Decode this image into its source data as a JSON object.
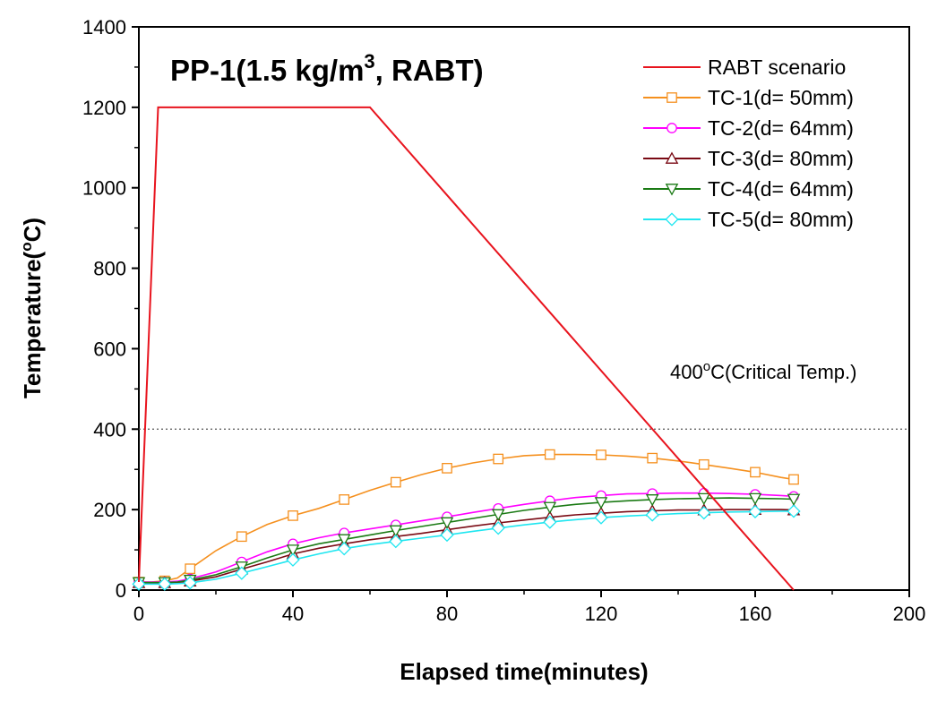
{
  "chart_data": {
    "type": "line",
    "title": {
      "prefix": "PP-1(1.5 kg/m",
      "sup": "3",
      "suffix": ", RABT)"
    },
    "xlabel": "Elapsed time(minutes)",
    "ylabel": {
      "prefix": "Temperature(",
      "sup": "o",
      "suffix": "C)"
    },
    "xlim": [
      0,
      200
    ],
    "ylim": [
      0,
      1400
    ],
    "xticks": [
      "0",
      "40",
      "80",
      "120",
      "160",
      "200"
    ],
    "yticks": [
      "0",
      "200",
      "400",
      "600",
      "800",
      "1000",
      "1200",
      "1400"
    ],
    "grid": false,
    "legend_position": "top-right",
    "reference_line": {
      "y": 400,
      "label": {
        "prefix": "400",
        "sup": "o",
        "suffix": "C(Critical Temp.)"
      }
    },
    "series": [
      {
        "name": "RABT scenario",
        "color": "#e8141e",
        "marker": "none",
        "x": [
          0,
          5,
          60,
          170
        ],
        "y": [
          20,
          1200,
          1200,
          0
        ]
      },
      {
        "name": "TC-1(d= 50mm)",
        "color": "#f5901e",
        "marker": "square",
        "x": [
          0,
          3.3,
          6.7,
          10,
          13.3,
          20,
          26.7,
          33.3,
          40,
          46.7,
          53.3,
          60,
          66.7,
          73.3,
          80,
          86.7,
          93.3,
          100,
          106.7,
          113.3,
          120,
          126.7,
          133.3,
          140,
          146.7,
          153.3,
          160,
          166.7,
          170
        ],
        "y": [
          20,
          20,
          23,
          30,
          53,
          98,
          133,
          163,
          185,
          203,
          225,
          248,
          268,
          287,
          303,
          316,
          326,
          334,
          337,
          337,
          336,
          333,
          328,
          321,
          312,
          303,
          293,
          280,
          275
        ]
      },
      {
        "name": "TC-2(d= 64mm)",
        "color": "#ff00ff",
        "marker": "circle",
        "x": [
          0,
          3.3,
          6.7,
          10,
          13.3,
          20,
          26.7,
          33.3,
          40,
          46.7,
          53.3,
          60,
          66.7,
          73.3,
          80,
          86.7,
          93.3,
          100,
          106.7,
          113.3,
          120,
          126.7,
          133.3,
          140,
          146.7,
          153.3,
          160,
          166.7,
          170
        ],
        "y": [
          20,
          20,
          20,
          22,
          28,
          45,
          70,
          95,
          115,
          130,
          142,
          152,
          162,
          172,
          182,
          193,
          203,
          213,
          222,
          230,
          235,
          239,
          240,
          241,
          241,
          240,
          238,
          235,
          233
        ]
      },
      {
        "name": "TC-3(d= 80mm)",
        "color": "#7a0a14",
        "marker": "triangle-up",
        "x": [
          0,
          3.3,
          6.7,
          10,
          13.3,
          20,
          26.7,
          33.3,
          40,
          46.7,
          53.3,
          60,
          66.7,
          73.3,
          80,
          86.7,
          93.3,
          100,
          106.7,
          113.3,
          120,
          126.7,
          133.3,
          140,
          146.7,
          153.3,
          160,
          166.7,
          170
        ],
        "y": [
          18,
          18,
          18,
          19,
          22,
          33,
          52,
          70,
          90,
          104,
          115,
          125,
          133,
          141,
          150,
          159,
          167,
          174,
          181,
          187,
          191,
          195,
          197,
          199,
          199,
          200,
          200,
          200,
          199
        ]
      },
      {
        "name": "TC-4(d= 64mm)",
        "color": "#1a7a14",
        "marker": "triangle-down",
        "x": [
          0,
          3.3,
          6.7,
          10,
          13.3,
          20,
          26.7,
          33.3,
          40,
          46.7,
          53.3,
          60,
          66.7,
          73.3,
          80,
          86.7,
          93.3,
          100,
          106.7,
          113.3,
          120,
          126.7,
          133.3,
          140,
          146.7,
          153.3,
          160,
          166.7,
          170
        ],
        "y": [
          19,
          19,
          19,
          20,
          25,
          38,
          58,
          80,
          100,
          115,
          126,
          137,
          148,
          158,
          168,
          178,
          188,
          198,
          206,
          213,
          218,
          222,
          225,
          227,
          228,
          229,
          228,
          227,
          226
        ]
      },
      {
        "name": "TC-5(d= 80mm)",
        "color": "#1fe6f0",
        "marker": "diamond",
        "x": [
          0,
          3.3,
          6.7,
          10,
          13.3,
          20,
          26.7,
          33.3,
          40,
          46.7,
          53.3,
          60,
          66.7,
          73.3,
          80,
          86.7,
          93.3,
          100,
          106.7,
          113.3,
          120,
          126.7,
          133.3,
          140,
          146.7,
          153.3,
          160,
          166.7,
          170
        ],
        "y": [
          15,
          15,
          15,
          16,
          18,
          27,
          42,
          58,
          75,
          90,
          103,
          113,
          121,
          129,
          137,
          146,
          154,
          162,
          169,
          175,
          180,
          184,
          187,
          190,
          192,
          194,
          195,
          196,
          196
        ]
      }
    ]
  }
}
